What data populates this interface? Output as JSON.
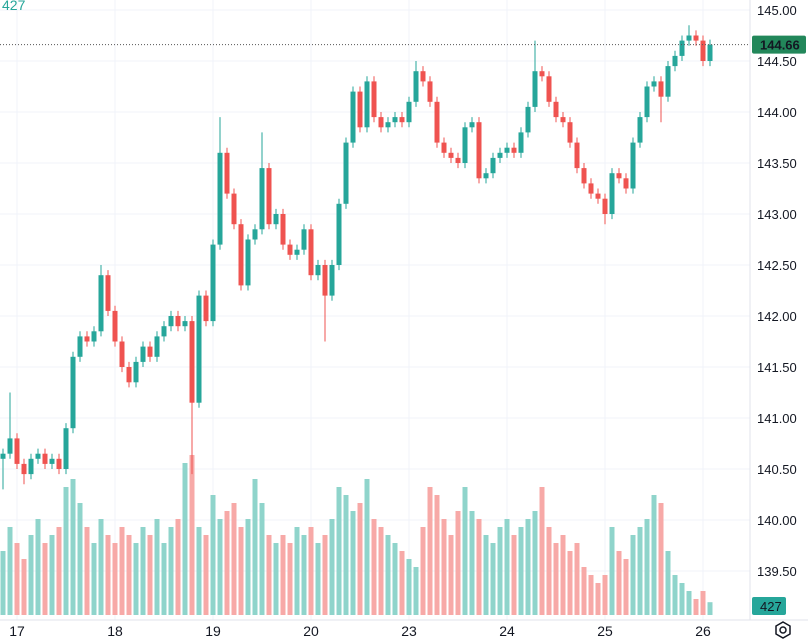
{
  "header": {
    "volume_value": "427"
  },
  "chart_data": {
    "type": "candlestick",
    "title": "",
    "y_ticks": [
      "139.50",
      "140.00",
      "140.50",
      "141.00",
      "141.50",
      "142.00",
      "142.50",
      "143.00",
      "143.50",
      "144.00",
      "144.50",
      "145.00"
    ],
    "ylim": [
      139.35,
      145.1
    ],
    "x_tick_labels": [
      {
        "label": "17",
        "index": 2
      },
      {
        "label": "18",
        "index": 16
      },
      {
        "label": "19",
        "index": 30
      },
      {
        "label": "20",
        "index": 44
      },
      {
        "label": "23",
        "index": 58
      },
      {
        "label": "24",
        "index": 72
      },
      {
        "label": "25",
        "index": 86
      },
      {
        "label": "26",
        "index": 100
      }
    ],
    "first_open": 140.6,
    "close": [
      140.65,
      140.8,
      140.55,
      140.45,
      140.6,
      140.65,
      140.55,
      140.6,
      140.5,
      140.9,
      141.6,
      141.8,
      141.75,
      141.85,
      142.4,
      142.05,
      141.75,
      141.5,
      141.35,
      141.55,
      141.7,
      141.6,
      141.8,
      141.9,
      142.0,
      141.9,
      141.95,
      141.15,
      142.2,
      141.95,
      142.7,
      143.6,
      143.2,
      142.9,
      142.3,
      142.75,
      142.85,
      143.45,
      142.9,
      143.0,
      142.7,
      142.6,
      142.65,
      142.85,
      142.4,
      142.5,
      142.2,
      142.5,
      143.1,
      143.7,
      144.2,
      143.85,
      144.3,
      143.95,
      143.85,
      143.9,
      143.95,
      143.9,
      144.1,
      144.4,
      144.3,
      144.1,
      143.7,
      143.6,
      143.55,
      143.5,
      143.85,
      143.9,
      143.35,
      143.4,
      143.55,
      143.6,
      143.65,
      143.6,
      143.8,
      144.05,
      144.4,
      144.35,
      144.1,
      143.95,
      143.9,
      143.7,
      143.45,
      143.3,
      143.2,
      143.15,
      143.0,
      143.4,
      143.35,
      143.25,
      143.7,
      143.95,
      144.25,
      144.3,
      144.15,
      144.45,
      144.55,
      144.7,
      144.75,
      144.7,
      144.5,
      144.66
    ],
    "wick_low_overrides": {
      "0": 140.3,
      "3": 140.35,
      "27": 140.45,
      "46": 141.75,
      "86": 142.9,
      "94": 143.9
    },
    "wick_high_overrides": {
      "1": 141.25,
      "14": 142.5,
      "31": 143.95,
      "37": 143.8,
      "59": 144.5,
      "76": 144.7,
      "98": 144.85
    },
    "volume": [
      40,
      55,
      45,
      35,
      50,
      60,
      45,
      50,
      55,
      80,
      85,
      70,
      55,
      45,
      60,
      50,
      45,
      55,
      50,
      45,
      55,
      50,
      60,
      45,
      55,
      60,
      95,
      100,
      55,
      50,
      75,
      60,
      65,
      70,
      55,
      60,
      85,
      70,
      50,
      45,
      50,
      45,
      55,
      50,
      55,
      45,
      50,
      60,
      80,
      75,
      65,
      70,
      85,
      60,
      55,
      50,
      45,
      40,
      35,
      30,
      55,
      80,
      75,
      60,
      50,
      65,
      80,
      65,
      60,
      50,
      45,
      55,
      60,
      50,
      55,
      60,
      65,
      80,
      55,
      45,
      50,
      40,
      45,
      30,
      25,
      20,
      25,
      55,
      40,
      35,
      50,
      55,
      60,
      75,
      70,
      40,
      25,
      20,
      15,
      10,
      15,
      8
    ],
    "last_price_label": "144.66",
    "last_volume_label": "427",
    "up_color": "#26a69a",
    "down_color": "#ef5350",
    "vol_up_color": "#8fd4cb",
    "vol_down_color": "#f7a9a7",
    "price_label_color": "#22875a"
  }
}
